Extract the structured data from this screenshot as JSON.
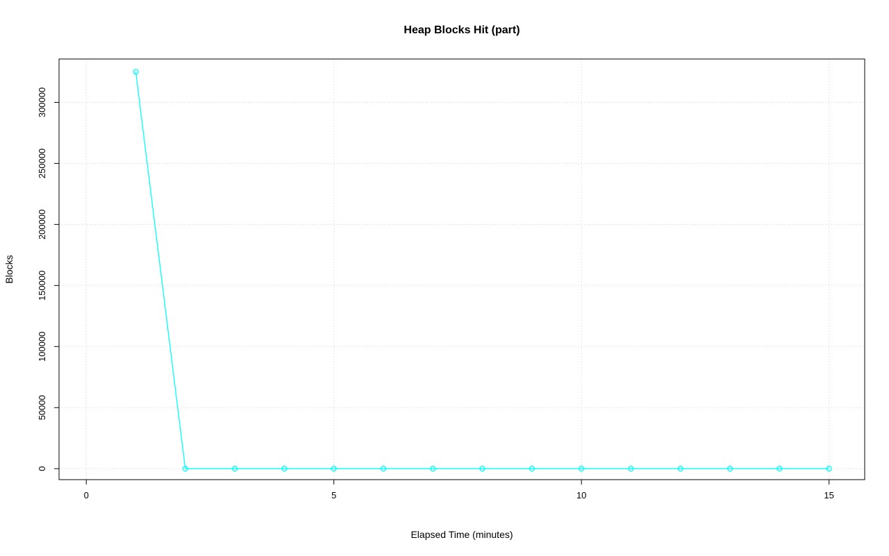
{
  "chart_data": {
    "type": "line",
    "title": "Heap Blocks Hit (part)",
    "xlabel": "Elapsed Time (minutes)",
    "ylabel": "Blocks",
    "x": [
      1,
      2,
      3,
      4,
      5,
      6,
      7,
      8,
      9,
      10,
      11,
      12,
      13,
      14,
      15
    ],
    "y": [
      325000,
      0,
      0,
      0,
      0,
      0,
      0,
      0,
      0,
      0,
      0,
      0,
      0,
      0,
      0
    ],
    "xticks": [
      0,
      5,
      10,
      15
    ],
    "xtick_labels": [
      "0",
      "5",
      "10",
      "15"
    ],
    "yticks": [
      0,
      50000,
      100000,
      150000,
      200000,
      250000,
      300000
    ],
    "ytick_labels": [
      "0",
      "50000",
      "100000",
      "150000",
      "200000",
      "250000",
      "300000"
    ],
    "xlim": [
      -0.55,
      15.72
    ],
    "ylim": [
      -9000,
      335500
    ],
    "grid": true,
    "grid_style": "dotted",
    "legend": "none",
    "line_color": "#00FFFF",
    "marker": "open-circle",
    "grid_color": "#D3D3D3",
    "axis_color": "#000000"
  }
}
